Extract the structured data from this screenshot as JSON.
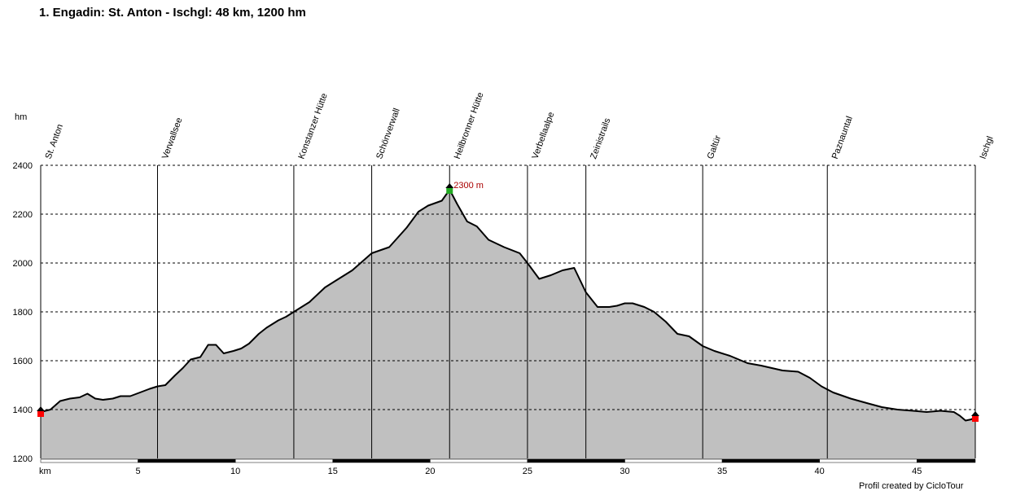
{
  "title": "1. Engadin: St. Anton - Ischgl: 48 km, 1200 hm",
  "credit": "Profil created by CicloTour",
  "chart_data": {
    "type": "area",
    "title": "1. Engadin: St. Anton - Ischgl: 48 km, 1200 hm",
    "xlabel": "km",
    "ylabel": "hm",
    "xlim": [
      0,
      48
    ],
    "ylim": [
      1200,
      2400
    ],
    "x_ticks": [
      5,
      10,
      15,
      20,
      25,
      30,
      35,
      40,
      45
    ],
    "y_ticks": [
      1200,
      1400,
      1600,
      1800,
      2000,
      2200,
      2400
    ],
    "grid": "horizontal dashed",
    "fill_color": "#c0c0c0",
    "line_color": "#000000",
    "peak": {
      "km": 21.0,
      "elevation": 2300,
      "label": "2300 m",
      "color": "#aa0000"
    },
    "start": {
      "km": 0,
      "elevation": 1390
    },
    "end": {
      "km": 48,
      "elevation": 1370
    },
    "waypoints": [
      {
        "name": "St. Anton",
        "km": 0
      },
      {
        "name": "Verwallsee",
        "km": 6.0
      },
      {
        "name": "Konstanzer Hütte",
        "km": 13.0
      },
      {
        "name": "Schönverwall",
        "km": 17.0
      },
      {
        "name": "Heilbronner Hütte",
        "km": 21.0
      },
      {
        "name": "Verbellaalpe",
        "km": 25.0
      },
      {
        "name": "Zeinistrails",
        "km": 28.0
      },
      {
        "name": "Galtür",
        "km": 34.0
      },
      {
        "name": "Paznauntal",
        "km": 40.4
      },
      {
        "name": "Ischgl",
        "km": 48.0
      }
    ],
    "profile": {
      "x": [
        0,
        0.5,
        1.0,
        1.5,
        2.0,
        2.4,
        2.8,
        3.2,
        3.7,
        4.1,
        4.6,
        5.1,
        5.6,
        6.0,
        6.4,
        6.9,
        7.3,
        7.7,
        8.2,
        8.6,
        9.0,
        9.4,
        9.9,
        10.3,
        10.7,
        11.2,
        11.6,
        12.2,
        12.6,
        13.0,
        13.8,
        14.6,
        15.1,
        16.0,
        17.0,
        17.9,
        18.8,
        19.4,
        19.9,
        20.6,
        21.0,
        21.4,
        21.9,
        22.4,
        23.0,
        23.8,
        24.6,
        25.0,
        25.6,
        26.2,
        26.8,
        27.4,
        28.0,
        28.6,
        29.2,
        29.6,
        30.0,
        30.4,
        31.0,
        31.5,
        32.1,
        32.7,
        33.3,
        34.0,
        34.6,
        35.4,
        36.3,
        37.0,
        38.1,
        38.9,
        39.5,
        40.1,
        40.7,
        41.6,
        42.5,
        43.2,
        44.0,
        44.8,
        45.5,
        46.2,
        46.9,
        47.2,
        47.5,
        47.8,
        48.0
      ],
      "y": [
        1390,
        1400,
        1435,
        1445,
        1450,
        1465,
        1445,
        1440,
        1445,
        1455,
        1455,
        1470,
        1485,
        1495,
        1500,
        1540,
        1570,
        1605,
        1615,
        1665,
        1665,
        1630,
        1640,
        1650,
        1670,
        1710,
        1735,
        1765,
        1780,
        1800,
        1840,
        1900,
        1925,
        1970,
        2040,
        2065,
        2145,
        2210,
        2235,
        2255,
        2300,
        2240,
        2170,
        2150,
        2095,
        2065,
        2040,
        2000,
        1935,
        1950,
        1970,
        1980,
        1880,
        1820,
        1820,
        1825,
        1835,
        1835,
        1820,
        1800,
        1760,
        1710,
        1700,
        1660,
        1640,
        1620,
        1590,
        1580,
        1560,
        1555,
        1530,
        1495,
        1470,
        1445,
        1425,
        1410,
        1400,
        1395,
        1390,
        1395,
        1390,
        1375,
        1355,
        1360,
        1370
      ]
    }
  }
}
